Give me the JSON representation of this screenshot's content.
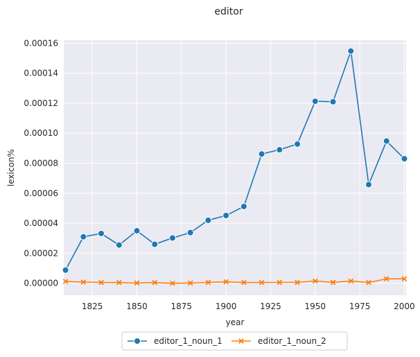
{
  "chart_data": {
    "type": "line",
    "title": "editor",
    "xlabel": "year",
    "ylabel": "lexicon%",
    "xlim": [
      1809,
      2001
    ],
    "ylim": [
      -8e-06,
      0.000162
    ],
    "x_ticks": [
      1825,
      1850,
      1875,
      1900,
      1925,
      1950,
      1975,
      2000
    ],
    "x_tick_labels": [
      "1825",
      "1850",
      "1875",
      "1900",
      "1925",
      "1950",
      "1975",
      "2000"
    ],
    "y_ticks": [
      0.0,
      2e-05,
      4e-05,
      6e-05,
      8e-05,
      0.0001,
      0.00012,
      0.00014,
      0.00016
    ],
    "y_tick_labels": [
      "0.00000",
      "0.00002",
      "0.00004",
      "0.00006",
      "0.00008",
      "0.00010",
      "0.00012",
      "0.00014",
      "0.00016"
    ],
    "grid": true,
    "legend_position": "bottom-center",
    "x": [
      1810,
      1820,
      1830,
      1840,
      1850,
      1860,
      1870,
      1880,
      1890,
      1900,
      1910,
      1920,
      1930,
      1940,
      1950,
      1960,
      1970,
      1980,
      1990,
      2000
    ],
    "series": [
      {
        "name": "editor_1_noun_1",
        "color": "#1f77b4",
        "marker": "circle",
        "values": [
          8.8e-06,
          3.1e-05,
          3.32e-05,
          2.55e-05,
          3.5e-05,
          2.6e-05,
          3.02e-05,
          3.38e-05,
          4.2e-05,
          4.52e-05,
          5.12e-05,
          8.62e-05,
          8.9e-05,
          9.28e-05,
          0.0001213,
          0.000121,
          0.0001548,
          6.58e-05,
          9.48e-05,
          8.3e-05
        ]
      },
      {
        "name": "editor_1_noun_2",
        "color": "#ff7f0e",
        "marker": "x",
        "values": [
          1.2e-06,
          8e-07,
          5e-07,
          5e-07,
          2e-07,
          5e-07,
          0.0,
          2e-07,
          6e-07,
          1e-06,
          5e-07,
          5e-07,
          6e-07,
          6e-07,
          1.5e-06,
          6e-07,
          1.5e-06,
          5e-07,
          3e-06,
          3e-06
        ]
      }
    ]
  }
}
